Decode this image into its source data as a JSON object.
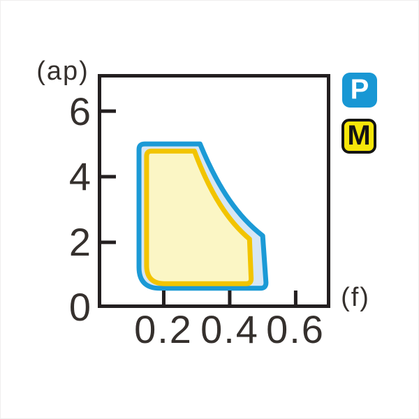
{
  "chart_data": {
    "type": "area",
    "title": "",
    "xlabel": "(f)",
    "ylabel": "(ap)",
    "xlim": [
      0,
      0.705
    ],
    "ylim": [
      0,
      7.13
    ],
    "grid": false,
    "x_ticks": [
      0.2,
      0.4,
      0.6
    ],
    "x_tick_labels": [
      "0.2",
      "0.4",
      "0.6"
    ],
    "y_ticks": [
      0,
      2,
      4,
      6
    ],
    "y_tick_labels": [
      "0",
      "2",
      "4",
      "6"
    ],
    "y_ticks_marked": [
      2,
      4,
      6
    ],
    "legend_position": "outside-top-right",
    "series": [
      {
        "name": "P",
        "fill": "#d6e6f5",
        "stroke": "#1b9ad6",
        "region": {
          "f_min": 0.125,
          "f_max": 0.51,
          "ap_min": 0.6,
          "ap_max": 5.0,
          "curve_from": {
            "f": 0.31,
            "ap": 5.0
          },
          "curve_to": {
            "f": 0.5,
            "ap": 2.2
          }
        }
      },
      {
        "name": "M",
        "fill": "#fbf6c5",
        "stroke": "#f2c400",
        "region": {
          "f_min": 0.148,
          "f_max": 0.465,
          "ap_min": 0.74,
          "ap_max": 4.78,
          "curve_from": {
            "f": 0.293,
            "ap": 4.78
          },
          "curve_to": {
            "f": 0.46,
            "ap": 2.1
          }
        }
      }
    ]
  },
  "legend": {
    "items": [
      {
        "label": "P",
        "bg": "#1897d4",
        "text": "#ffffff",
        "border": ""
      },
      {
        "label": "M",
        "bg": "#f6e60a",
        "text": "#141414",
        "border": "#141414"
      }
    ]
  },
  "colors": {
    "axis": "#231f20",
    "tick_text": "#35302d"
  }
}
